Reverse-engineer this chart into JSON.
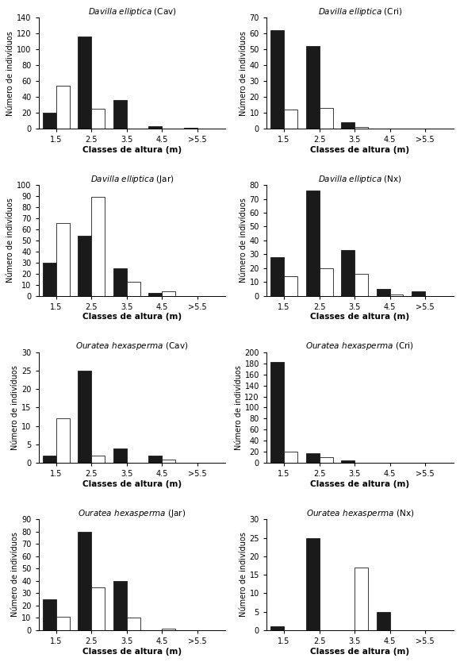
{
  "subplots": [
    {
      "title_italic": "Davilla elliptica",
      "title_normal": " (Cav)",
      "ylabel": "Número de indivíduos",
      "xlabel": "Classes de altura (m)",
      "ylim": [
        0,
        140
      ],
      "yticks": [
        0,
        20,
        40,
        60,
        80,
        100,
        120,
        140
      ],
      "black_bars": [
        20,
        116,
        36,
        3,
        1
      ],
      "white_bars": [
        54,
        25,
        0,
        0,
        0
      ]
    },
    {
      "title_italic": "Davilla elliptica",
      "title_normal": " (Cri)",
      "ylabel": "Número de indivíduos",
      "xlabel": "Classes de altura (m)",
      "ylim": [
        0,
        70
      ],
      "yticks": [
        0,
        10,
        20,
        30,
        40,
        50,
        60,
        70
      ],
      "black_bars": [
        62,
        52,
        4,
        0,
        0
      ],
      "white_bars": [
        12,
        13,
        1,
        0,
        0
      ]
    },
    {
      "title_italic": "Davilla elliptica",
      "title_normal": " (Jar)",
      "ylabel": "Número de indivíduos",
      "xlabel": "Classes de altura (m)",
      "ylim": [
        0,
        100
      ],
      "yticks": [
        0,
        10,
        20,
        30,
        40,
        50,
        60,
        70,
        80,
        90,
        100
      ],
      "black_bars": [
        30,
        54,
        25,
        3,
        0
      ],
      "white_bars": [
        66,
        89,
        13,
        4,
        0
      ],
      "ylabel_override": "Número de indivíduos"
    },
    {
      "title_italic": "Davilla elliptica",
      "title_normal": " (Nx)",
      "ylabel": "Número de indivíduos",
      "xlabel": "Classes de altura (m)",
      "ylim": [
        0,
        80
      ],
      "yticks": [
        0,
        10,
        20,
        30,
        40,
        50,
        60,
        70,
        80
      ],
      "black_bars": [
        28,
        76,
        33,
        5,
        3
      ],
      "white_bars": [
        14,
        20,
        16,
        1,
        0
      ]
    },
    {
      "title_italic": "Ouratea hexasperma",
      "title_normal": " (Cav)",
      "ylabel": "Número de indivíduos",
      "xlabel": "Classes de altura (m)",
      "ylim": [
        0,
        30
      ],
      "yticks": [
        0,
        5,
        10,
        15,
        20,
        25,
        30
      ],
      "black_bars": [
        2,
        25,
        4,
        2,
        0
      ],
      "white_bars": [
        12,
        2,
        0,
        1,
        0
      ]
    },
    {
      "title_italic": "Ouratea hexasperma",
      "title_normal": " (Cri)",
      "ylabel": "Número de indivíduos",
      "xlabel": "Classes de altura (m)",
      "ylim": [
        0,
        200
      ],
      "yticks": [
        0,
        20,
        40,
        60,
        80,
        100,
        120,
        140,
        160,
        180,
        200
      ],
      "black_bars": [
        183,
        18,
        4,
        0,
        0
      ],
      "white_bars": [
        20,
        11,
        0,
        0,
        0
      ]
    },
    {
      "title_italic": "Ouratea hexasperma",
      "title_normal": " (Jar)",
      "ylabel": "Número de indivíduos",
      "xlabel": "Classes de altura (m)",
      "ylim": [
        0,
        90
      ],
      "yticks": [
        0,
        10,
        20,
        30,
        40,
        50,
        60,
        70,
        80,
        90
      ],
      "black_bars": [
        25,
        80,
        40,
        0,
        0
      ],
      "white_bars": [
        11,
        35,
        10,
        1,
        0
      ]
    },
    {
      "title_italic": "Ouratea hexasperma",
      "title_normal": " (Nx)",
      "ylabel": "Número de indivíduos",
      "xlabel": "Classes de altura (m)",
      "ylim": [
        0,
        30
      ],
      "yticks": [
        0,
        5,
        10,
        15,
        20,
        25,
        30
      ],
      "black_bars": [
        1,
        25,
        0,
        5,
        0
      ],
      "white_bars": [
        0,
        0,
        17,
        0,
        0
      ]
    }
  ],
  "bar_width": 0.38,
  "black_color": "#1a1a1a",
  "white_color": "#ffffff",
  "edge_color": "#1a1a1a",
  "background_color": "#ffffff",
  "x_positions": [
    1.5,
    2.5,
    3.5,
    4.5,
    5.5
  ],
  "x_labels": [
    "1.5",
    "2.5",
    "3.5",
    "4.5",
    ">5.5"
  ],
  "ylabel_jar_typo": "Número de indivíduos"
}
